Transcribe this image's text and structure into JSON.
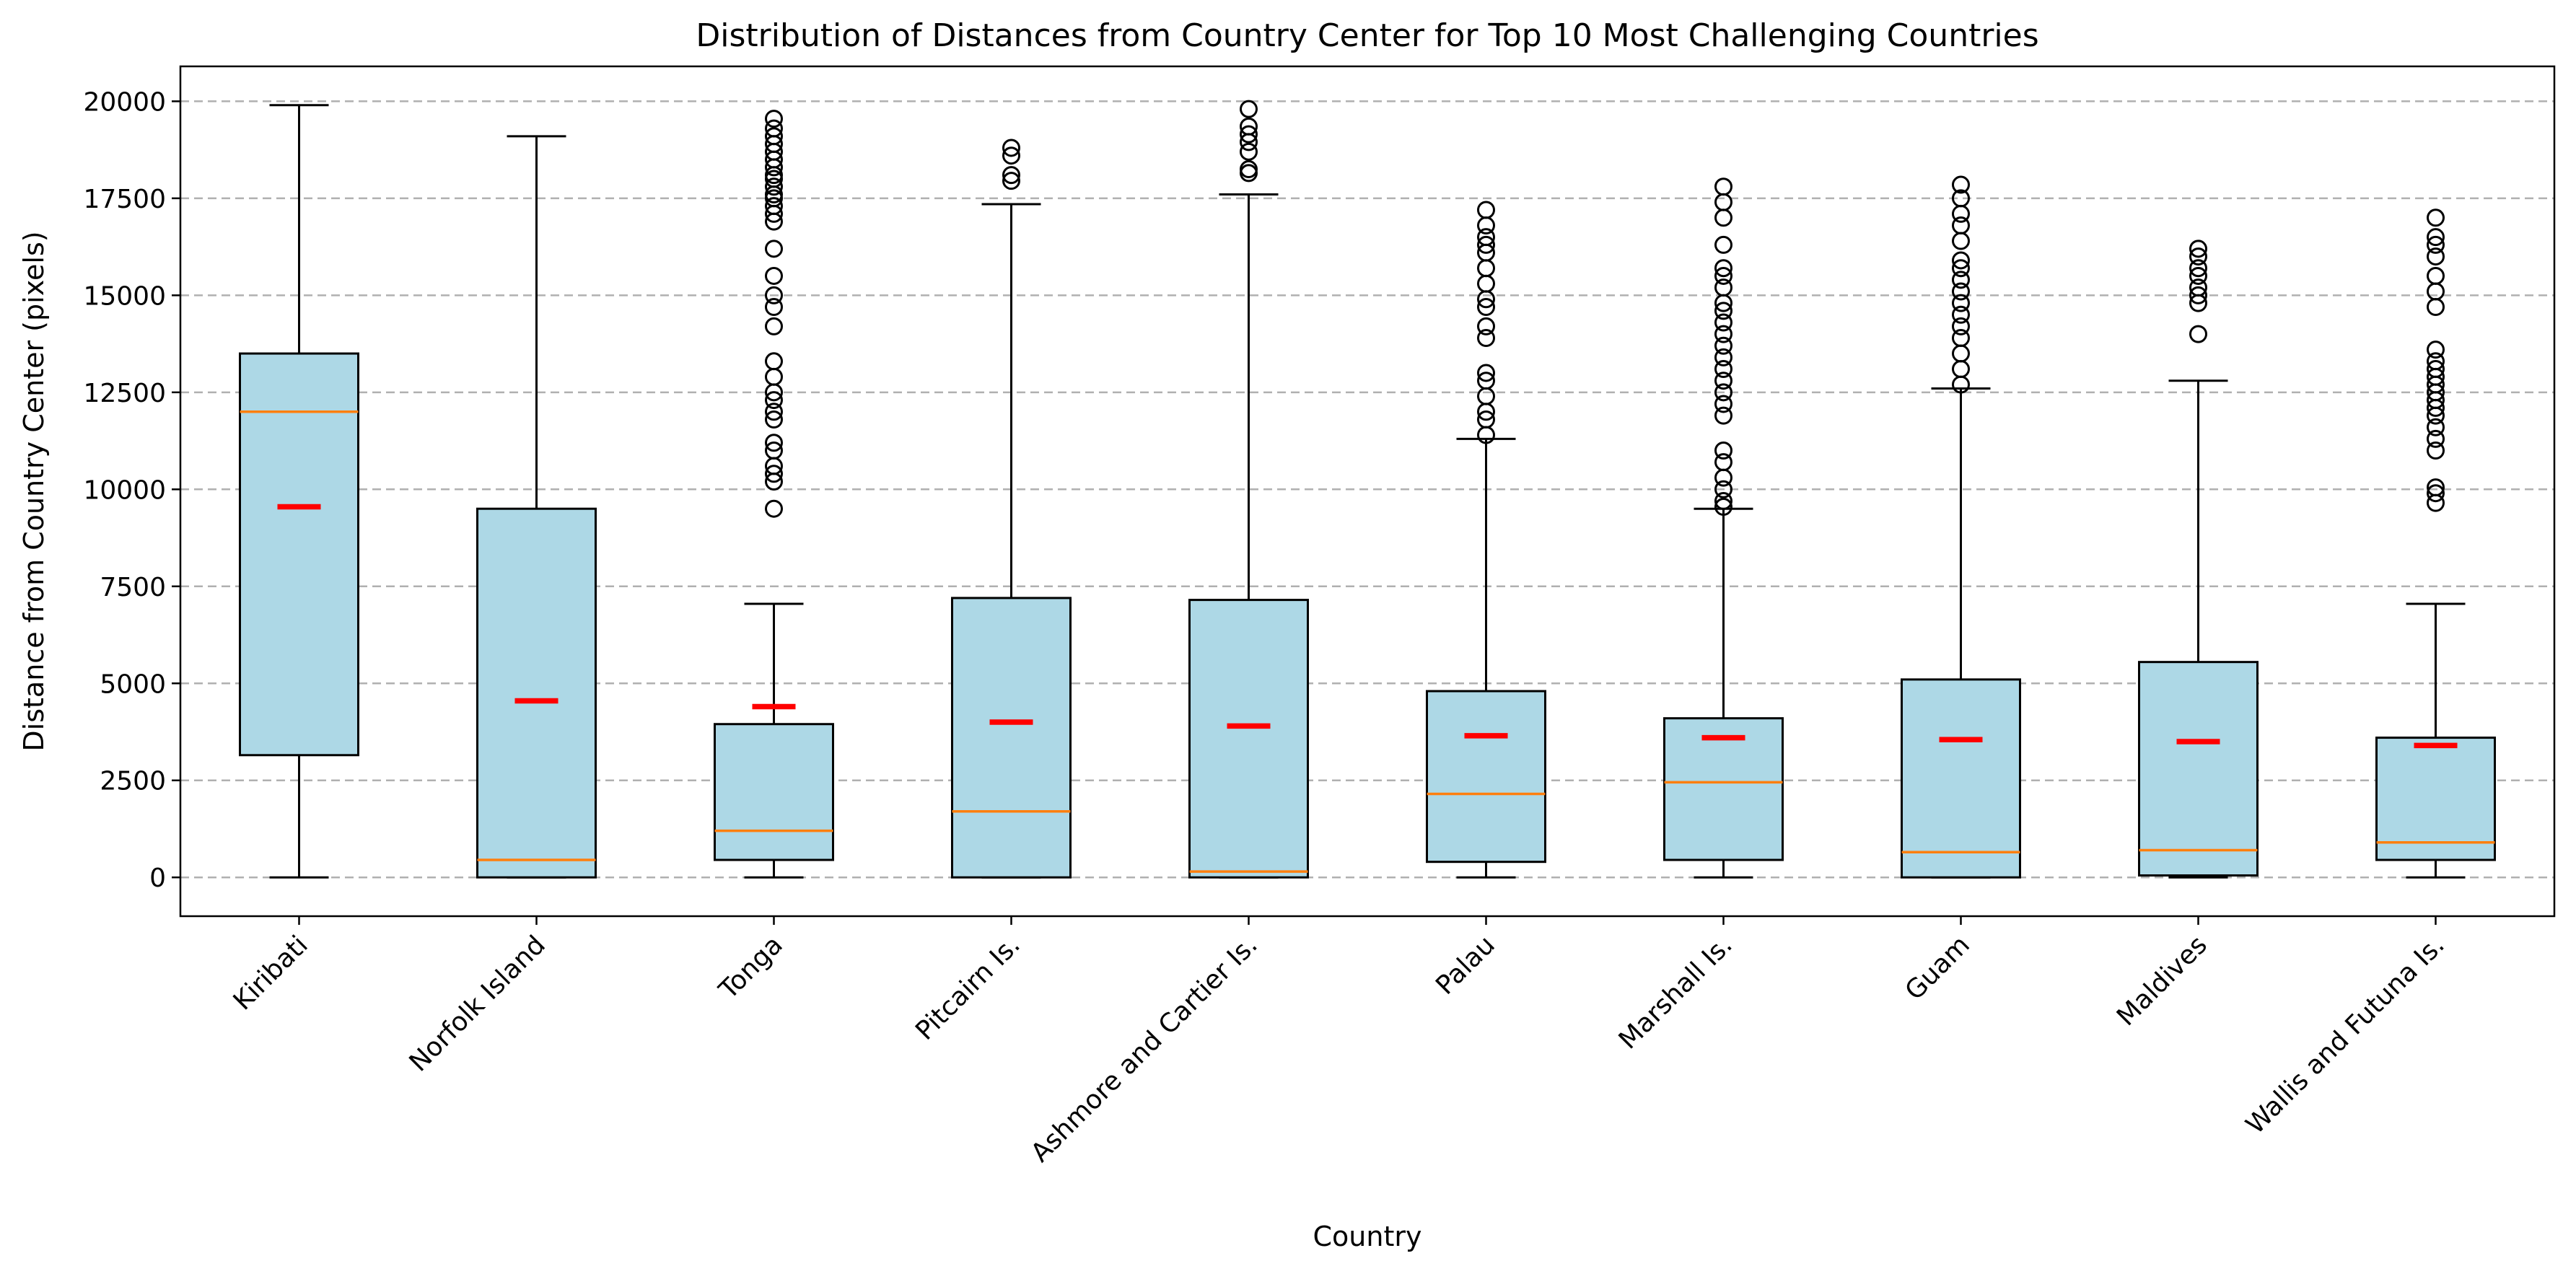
{
  "chart_data": {
    "type": "box",
    "title": "Distribution of Distances from Country Center for Top 10 Most Challenging Countries",
    "xlabel": "Country",
    "ylabel": "Distance from Country Center (pixels)",
    "ylim": [
      -1000,
      20900
    ],
    "yticks": [
      0,
      2500,
      5000,
      7500,
      10000,
      12500,
      15000,
      17500,
      20000
    ],
    "grid": "y-dashed",
    "colors": {
      "box": "#add8e6",
      "median": "#ff7f0e",
      "mean": "#ff0000",
      "grid": "#b0b0b0"
    },
    "categories": [
      "Kiribati",
      "Norfolk Island",
      "Tonga",
      "Pitcairn Is.",
      "Ashmore and Cartier Is.",
      "Palau",
      "Marshall Is.",
      "Guam",
      "Maldives",
      "Wallis and Futuna Is."
    ],
    "boxes": [
      {
        "whisker_low": 0,
        "q1": 3150,
        "median": 12000,
        "q3": 13500,
        "whisker_high": 19900,
        "mean": 9550,
        "fliers": []
      },
      {
        "whisker_low": 0,
        "q1": 0,
        "median": 450,
        "q3": 9500,
        "whisker_high": 19100,
        "mean": 4550,
        "fliers": []
      },
      {
        "whisker_low": 0,
        "q1": 450,
        "median": 1200,
        "q3": 3950,
        "whisker_high": 7050,
        "mean": 4400,
        "fliers": [
          9500,
          10200,
          10400,
          10600,
          11000,
          11200,
          11800,
          12000,
          12300,
          12500,
          12900,
          13300,
          14200,
          14700,
          15000,
          15500,
          16200,
          16900,
          17100,
          17300,
          17500,
          17600,
          17800,
          18000,
          18100,
          18300,
          18500,
          18700,
          18900,
          19100,
          19300,
          19550
        ]
      },
      {
        "whisker_low": 0,
        "q1": 0,
        "median": 1700,
        "q3": 7200,
        "whisker_high": 17350,
        "mean": 4000,
        "fliers": [
          17950,
          18100,
          18600,
          18800
        ]
      },
      {
        "whisker_low": 0,
        "q1": 0,
        "median": 150,
        "q3": 7150,
        "whisker_high": 17600,
        "mean": 3900,
        "fliers": [
          18150,
          18250,
          18700,
          18950,
          19150,
          19350,
          19800
        ]
      },
      {
        "whisker_low": 0,
        "q1": 400,
        "median": 2150,
        "q3": 4800,
        "whisker_high": 11300,
        "mean": 3650,
        "fliers": [
          11400,
          11800,
          12000,
          12400,
          12800,
          13000,
          13900,
          14200,
          14700,
          14900,
          15300,
          15700,
          16100,
          16300,
          16500,
          16800,
          17200
        ]
      },
      {
        "whisker_low": 0,
        "q1": 450,
        "median": 2450,
        "q3": 4100,
        "whisker_high": 9500,
        "mean": 3600,
        "fliers": [
          9550,
          9700,
          10000,
          10300,
          10700,
          11000,
          11900,
          12200,
          12500,
          12800,
          13100,
          13400,
          13700,
          14000,
          14300,
          14600,
          14800,
          15200,
          15500,
          15700,
          16300,
          17000,
          17400,
          17800
        ]
      },
      {
        "whisker_low": 0,
        "q1": 0,
        "median": 650,
        "q3": 5100,
        "whisker_high": 12600,
        "mean": 3550,
        "fliers": [
          12700,
          13100,
          13500,
          13900,
          14200,
          14500,
          14800,
          15100,
          15400,
          15700,
          15900,
          16400,
          16800,
          17100,
          17500,
          17850
        ]
      },
      {
        "whisker_low": 0,
        "q1": 50,
        "median": 700,
        "q3": 5550,
        "whisker_high": 12800,
        "mean": 3500,
        "fliers": [
          14000,
          14800,
          15000,
          15200,
          15500,
          15700,
          16000,
          16200
        ]
      },
      {
        "whisker_low": 0,
        "q1": 450,
        "median": 900,
        "q3": 3600,
        "whisker_high": 7050,
        "mean": 3400,
        "fliers": [
          9650,
          9900,
          10050,
          11000,
          11300,
          11600,
          11900,
          12100,
          12300,
          12500,
          12700,
          12900,
          13100,
          13300,
          13600,
          14700,
          15100,
          15500,
          16000,
          16300,
          16500,
          17000
        ]
      }
    ]
  }
}
